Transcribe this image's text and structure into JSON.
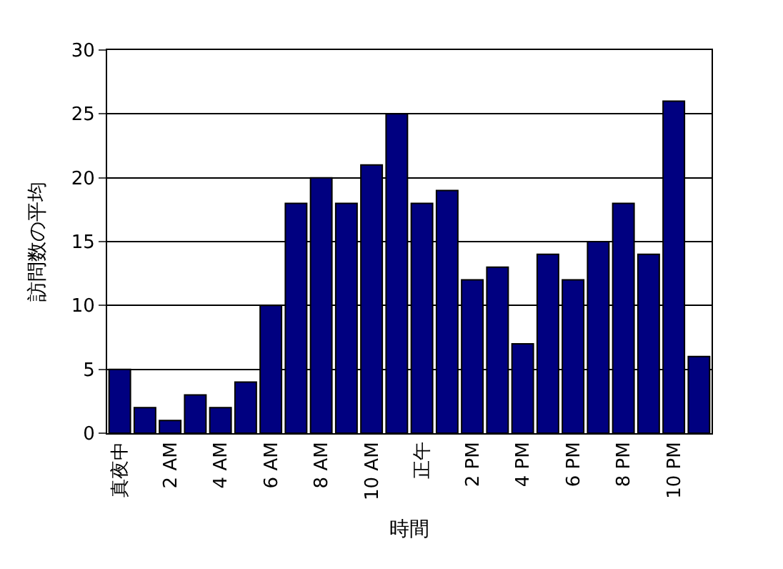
{
  "chart_data": {
    "type": "bar",
    "xlabel": "時間",
    "ylabel": "訪問数の平均",
    "categories": [
      "真夜中",
      null,
      "2 AM",
      null,
      "4 AM",
      null,
      "6 AM",
      null,
      "8 AM",
      null,
      "10 AM",
      null,
      "正午",
      null,
      "2 PM",
      null,
      "4 PM",
      null,
      "6 PM",
      null,
      "8 PM",
      null,
      "10 PM",
      null
    ],
    "values": [
      5,
      2,
      1,
      3,
      2,
      4,
      10,
      18,
      20,
      18,
      21,
      25,
      18,
      19,
      12,
      13,
      7,
      14,
      12,
      15,
      18,
      14,
      26,
      6
    ],
    "color": "#000080",
    "ylim": [
      0,
      30
    ],
    "yticks": [
      0,
      5,
      10,
      15,
      20,
      25,
      30
    ],
    "grid": "y",
    "legend": false
  }
}
